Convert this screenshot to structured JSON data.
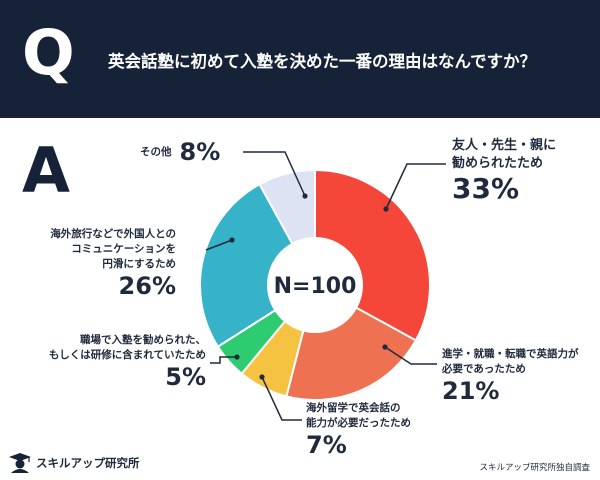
{
  "header": {
    "q_letter": "Q",
    "question": "英会話塾に初めて入塾を決めた一番の理由はなんですか？"
  },
  "answer_letter": "A",
  "chart_data": {
    "type": "pie",
    "center_label": "N=100",
    "slices": [
      {
        "label": "友人・先生・親に\n勧められたため",
        "value": 33,
        "pct_label": "33%",
        "color": "#f4473a"
      },
      {
        "label": "進学・就職・転職で英語力が\n必要であったため",
        "value": 21,
        "pct_label": "21%",
        "color": "#ee7152"
      },
      {
        "label": "海外留学で英会話の\n能力が必要だったため",
        "value": 7,
        "pct_label": "7%",
        "color": "#f5c242"
      },
      {
        "label": "職場で入塾を勧められた、\nもしくは研修に含まれていたため",
        "value": 5,
        "pct_label": "5%",
        "color": "#2ecc71"
      },
      {
        "label": "海外旅行などで外国人との\nコミュニケーションを\n円滑にするため",
        "value": 26,
        "pct_label": "26%",
        "color": "#36b3c9"
      },
      {
        "label": "その他",
        "value": 8,
        "pct_label": "8%",
        "color": "#dde3f3"
      }
    ]
  },
  "footer": {
    "logo_text": "スキルアップ研究所",
    "source": "スキルアップ研究所独自調査"
  }
}
